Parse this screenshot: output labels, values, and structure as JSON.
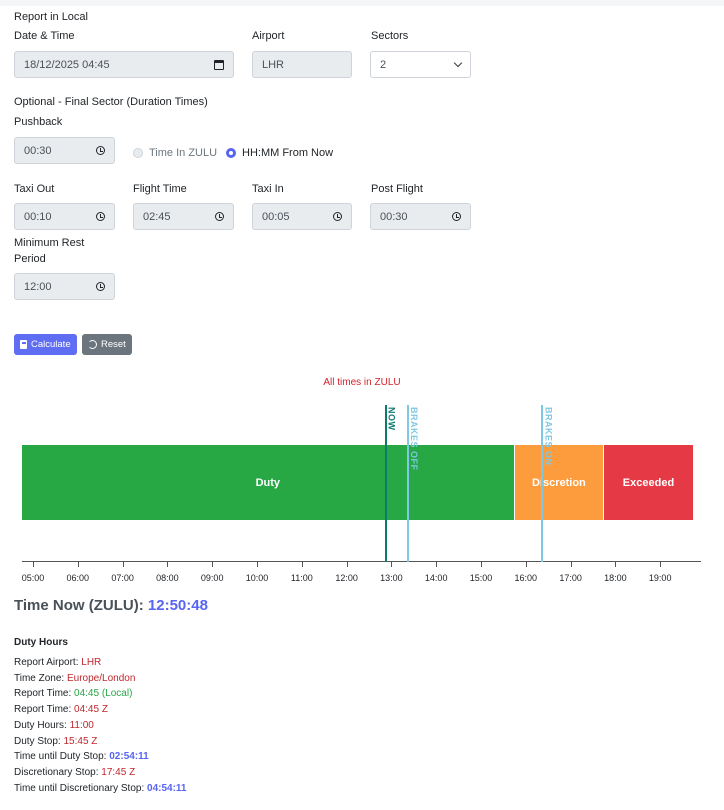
{
  "form": {
    "section_title": "Report in Local",
    "date_time": {
      "label": "Date & Time",
      "value": "18/12/2025 04:45"
    },
    "airport": {
      "label": "Airport",
      "value": "LHR"
    },
    "sectors": {
      "label": "Sectors",
      "value": "2"
    },
    "optional_title": "Optional - Final Sector (Duration Times)",
    "pushback": {
      "label": "Pushback",
      "value": "00:30"
    },
    "radio_zulu": "Time In ZULU",
    "radio_from_now": "HH:MM From Now",
    "taxi_out": {
      "label": "Taxi Out",
      "value": "00:10"
    },
    "flight_time": {
      "label": "Flight Time",
      "value": "02:45"
    },
    "taxi_in": {
      "label": "Taxi In",
      "value": "00:05"
    },
    "post_flight": {
      "label": "Post Flight",
      "value": "00:30"
    },
    "min_rest": {
      "label_line1": "Minimum Rest",
      "label_line2": "Period",
      "value": "12:00"
    }
  },
  "buttons": {
    "calculate": "Calculate",
    "reset": "Reset"
  },
  "timeline": {
    "note": "All times in ZULU",
    "axis_start_hour": 4.75,
    "axis_end_hour": 20,
    "ticks": [
      "05:00",
      "06:00",
      "07:00",
      "08:00",
      "09:00",
      "10:00",
      "11:00",
      "12:00",
      "13:00",
      "14:00",
      "15:00",
      "16:00",
      "17:00",
      "18:00",
      "19:00"
    ],
    "segments": [
      {
        "label": "Duty",
        "start": 4.75,
        "end": 15.75,
        "color": "#28a745"
      },
      {
        "label": "Discretion",
        "start": 15.75,
        "end": 17.75,
        "color": "#fd9c3c"
      },
      {
        "label": "Exceeded",
        "start": 17.75,
        "end": 19.75,
        "color": "#e63946"
      }
    ],
    "markers": [
      {
        "label": "NOW",
        "time": 12.847,
        "color": "#0d7a6e"
      },
      {
        "label": "BRAKES OFF",
        "time": 13.347,
        "color": "#7ec8e3"
      },
      {
        "label": "BRAKES ON",
        "time": 16.347,
        "color": "#7ec8e3"
      }
    ]
  },
  "time_now": {
    "label": "Time Now (ZULU):",
    "value": "12:50:48"
  },
  "duty": {
    "title": "Duty Hours",
    "lines": [
      {
        "label": "Report Airport:",
        "value": "LHR"
      },
      {
        "label": "Time Zone:",
        "value": "Europe/London"
      },
      {
        "label": "Report Time:",
        "value": "04:45 (Local)"
      },
      {
        "label": "Report Time:",
        "value": "04:45 Z"
      },
      {
        "label": "Duty Hours:",
        "value": "11:00"
      },
      {
        "label": "Duty Stop:",
        "value": "15:45 Z"
      },
      {
        "label": "Time until Duty Stop:",
        "value": "02:54:11"
      },
      {
        "label": "Discretionary Stop:",
        "value": "17:45 Z"
      },
      {
        "label": "Time until Discretionary Stop:",
        "value": "04:54:11"
      }
    ]
  }
}
